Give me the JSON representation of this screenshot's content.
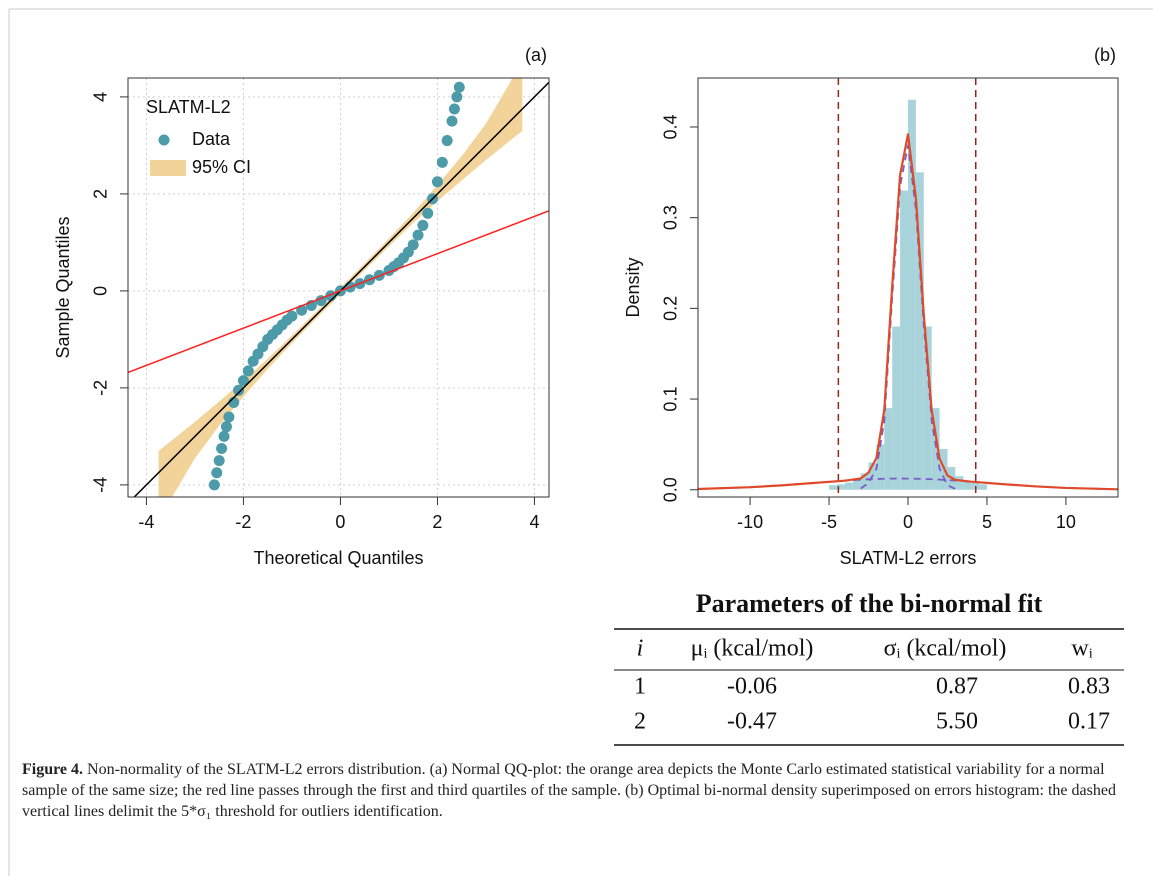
{
  "chart_data": [
    {
      "type": "scatter",
      "annotation": "(a)",
      "xlabel": "Theoretical Quantiles",
      "ylabel": "Sample Quantiles",
      "legend_title": "SLATM-L2",
      "legend": "top-left",
      "grid": true,
      "xlim": [
        -4.38,
        4.3
      ],
      "ylim": [
        -4.25,
        4.39
      ],
      "xticks": [
        -4,
        -2,
        0,
        2,
        4
      ],
      "yticks": [
        -4,
        -2,
        0,
        2,
        4
      ],
      "series": [
        {
          "name": "Data",
          "color": "#4d9aa8",
          "x": [
            -2.6,
            -2.55,
            -2.5,
            -2.45,
            -2.4,
            -2.35,
            -2.3,
            -2.2,
            -2.1,
            -2.0,
            -1.9,
            -1.8,
            -1.7,
            -1.6,
            -1.5,
            -1.4,
            -1.3,
            -1.2,
            -1.1,
            -1.0,
            -0.8,
            -0.6,
            -0.4,
            -0.2,
            0,
            0.2,
            0.4,
            0.6,
            0.8,
            1.0,
            1.1,
            1.2,
            1.3,
            1.4,
            1.5,
            1.6,
            1.7,
            1.8,
            1.9,
            2.0,
            2.1,
            2.2,
            2.3,
            2.35,
            2.4,
            2.45
          ],
          "values": [
            -4.0,
            -3.75,
            -3.5,
            -3.25,
            -3.0,
            -2.8,
            -2.6,
            -2.3,
            -2.05,
            -1.85,
            -1.65,
            -1.45,
            -1.3,
            -1.15,
            -1.0,
            -0.9,
            -0.8,
            -0.7,
            -0.6,
            -0.52,
            -0.4,
            -0.3,
            -0.2,
            -0.1,
            0.0,
            0.08,
            0.15,
            0.23,
            0.32,
            0.42,
            0.5,
            0.58,
            0.68,
            0.8,
            0.95,
            1.15,
            1.35,
            1.6,
            1.9,
            2.25,
            2.65,
            3.1,
            3.5,
            3.75,
            4.0,
            4.2
          ]
        },
        {
          "name": "95% CI",
          "type": "band",
          "color": "#f2d39a",
          "x": [
            -3.75,
            -3.5,
            -3,
            -2.5,
            -2,
            -1.5,
            -1,
            -0.5,
            0,
            0.5,
            1,
            1.5,
            2,
            2.5,
            3,
            3.5,
            3.75
          ],
          "upper": [
            -3.3,
            -3.1,
            -2.7,
            -2.28,
            -1.85,
            -1.4,
            -0.92,
            -0.43,
            0.07,
            0.57,
            1.08,
            1.61,
            2.18,
            2.78,
            3.45,
            4.3,
            4.9
          ],
          "lower": [
            -4.9,
            -4.3,
            -3.45,
            -2.78,
            -2.18,
            -1.61,
            -1.08,
            -0.57,
            -0.07,
            0.43,
            0.92,
            1.4,
            1.85,
            2.28,
            2.7,
            3.1,
            3.3
          ]
        }
      ],
      "lines": [
        {
          "color": "#000000",
          "x": [
            -4.4,
            4.4
          ],
          "values": [
            -4.4,
            4.4
          ]
        },
        {
          "color": "#ff2020",
          "x": [
            -4.4,
            4.4
          ],
          "values": [
            -1.69,
            1.69
          ]
        }
      ]
    },
    {
      "type": "histogram",
      "annotation": "(b)",
      "xlabel": "SLATM-L2 errors",
      "ylabel": "Density",
      "grid": false,
      "xlim": [
        -13.3,
        13.3
      ],
      "ylim": [
        -0.008,
        0.454
      ],
      "xticks": [
        -10,
        -5,
        0,
        5,
        10
      ],
      "yticks": [
        {
          "value": 0,
          "label": "0.0"
        },
        0.1,
        0.2,
        0.3,
        0.4
      ],
      "color": "#a9d3db",
      "bins": [
        -5,
        -4.5,
        -4,
        -3.5,
        -3,
        -2.5,
        -2,
        -1.5,
        -1,
        -0.5,
        0,
        0.5,
        1,
        1.5,
        2,
        2.5,
        3,
        3.5,
        4,
        4.5,
        5
      ],
      "values": [
        0.005,
        0.006,
        0.008,
        0.012,
        0.018,
        0.03,
        0.05,
        0.09,
        0.18,
        0.33,
        0.43,
        0.35,
        0.18,
        0.09,
        0.045,
        0.025,
        0.015,
        0.01,
        0.008,
        0.006
      ],
      "series": [
        {
          "color": "#7b5cc4",
          "dash": true,
          "x": [
            -3,
            -2.5,
            -2,
            -1.5,
            -1,
            -0.5,
            0,
            0.5,
            1,
            1.5,
            2,
            2.5,
            3
          ],
          "values": [
            0.0013,
            0.0075,
            0.0231,
            0.0762,
            0.2123,
            0.3349,
            0.3797,
            0.3094,
            0.1812,
            0.0762,
            0.0231,
            0.005,
            0.0008
          ]
        },
        {
          "color": "#7b5cc4",
          "dash": true,
          "x": [
            -13.3,
            -10,
            -8,
            -6,
            -4,
            -3,
            -2.5,
            -2,
            -1.5,
            -1,
            -0.5,
            0,
            0.5,
            1,
            1.5,
            2,
            2.5,
            3,
            4,
            6,
            8,
            10,
            13.3
          ],
          "values": [
            0.00081,
            0.00275,
            0.00483,
            0.00744,
            0.01004,
            0.0111,
            0.01152,
            0.01187,
            0.01212,
            0.01227,
            0.01233,
            0.01228,
            0.01214,
            0.0119,
            0.01156,
            0.01115,
            0.01066,
            0.01011,
            0.00886,
            0.00619,
            0.00377,
            0.00201,
            0.00054
          ]
        },
        {
          "color": "#e04a2a",
          "dash": false,
          "x": [
            -13.3,
            -10,
            -8,
            -6,
            -4,
            -3,
            -2.5,
            -2,
            -1.5,
            -1,
            -0.5,
            0,
            0.5,
            1,
            1.5,
            2,
            2.5,
            3,
            4,
            6,
            8,
            10,
            13.3
          ],
          "values": [
            0.0008,
            0.0028,
            0.0048,
            0.0074,
            0.01,
            0.0124,
            0.019,
            0.035,
            0.0883,
            0.2246,
            0.3472,
            0.392,
            0.3215,
            0.1931,
            0.0878,
            0.0343,
            0.0157,
            0.0109,
            0.0089,
            0.0062,
            0.0038,
            0.002,
            0.0005
          ]
        }
      ],
      "vlines": {
        "color": "#8b2a1a",
        "values": [
          -4.41,
          4.29
        ]
      }
    }
  ],
  "table": {
    "title": "Parameters of the bi-normal fit",
    "header": [
      "i",
      "μᵢ (kcal/mol)",
      "σᵢ (kcal/mol)",
      "wᵢ"
    ],
    "rows": [
      [
        "1",
        "-0.06",
        "0.87",
        "0.83"
      ],
      [
        "2",
        "-0.47",
        "5.50",
        "0.17"
      ]
    ]
  },
  "caption": {
    "label": "Figure 4.",
    "text": "Non-normality of the SLATM-L2 errors distribution. (a) Normal QQ-plot: the orange area depicts the Monte Carlo estimated statistical variability for a normal sample of the same size; the red line passes through the first and third quartiles of the sample. (b) Optimal bi-normal density superimposed on errors histogram: the dashed vertical lines delimit the 5*σ₁ threshold for outliers identification."
  }
}
